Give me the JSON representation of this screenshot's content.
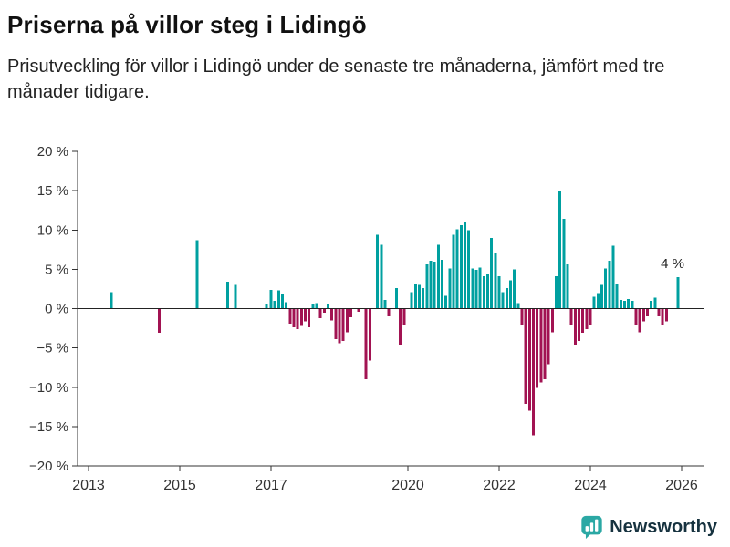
{
  "header": {
    "title": "Priserna på villor steg i Lidingö",
    "subtitle": "Prisutveckling för villor i Lidingö under de senaste tre månaderna, jämfört med tre månader tidigare."
  },
  "chart_data": {
    "type": "bar",
    "title": "Priserna på villor steg i Lidingö",
    "xlabel": "",
    "ylabel": "",
    "unit": "%",
    "ylim": [
      -20,
      20
    ],
    "yticks": [
      20,
      15,
      10,
      5,
      0,
      -5,
      -10,
      -15,
      -20
    ],
    "ytick_suffix": " %",
    "xlim": [
      2012.76,
      2026.5
    ],
    "xticks": [
      2013,
      2015,
      2017,
      2020,
      2022,
      2024,
      2026
    ],
    "grid": false,
    "legend": "none",
    "colors": {
      "positive": "#00a0a0",
      "negative": "#a21352",
      "axis": "#333333",
      "zero_line": "#222222",
      "tick_label": "#333333"
    },
    "annotation": {
      "text": "4 %",
      "x": 2025.92,
      "y": 4
    },
    "points": [
      [
        2013.5,
        2.1
      ],
      [
        2014.55,
        -3.1
      ],
      [
        2015.38,
        8.7
      ],
      [
        2016.05,
        3.4
      ],
      [
        2016.22,
        3.0
      ],
      [
        2016.9,
        0.5
      ],
      [
        2017.0,
        2.4
      ],
      [
        2017.08,
        1.0
      ],
      [
        2017.17,
        2.3
      ],
      [
        2017.25,
        1.9
      ],
      [
        2017.33,
        0.8
      ],
      [
        2017.42,
        -1.9
      ],
      [
        2017.5,
        -2.4
      ],
      [
        2017.58,
        -2.6
      ],
      [
        2017.67,
        -2.2
      ],
      [
        2017.75,
        -1.6
      ],
      [
        2017.83,
        -2.4
      ],
      [
        2017.92,
        0.6
      ],
      [
        2018.0,
        0.7
      ],
      [
        2018.08,
        -1.2
      ],
      [
        2018.17,
        -0.5
      ],
      [
        2018.25,
        0.6
      ],
      [
        2018.33,
        -1.5
      ],
      [
        2018.42,
        -3.9
      ],
      [
        2018.5,
        -4.4
      ],
      [
        2018.58,
        -4.1
      ],
      [
        2018.67,
        -3.0
      ],
      [
        2018.75,
        -1.1
      ],
      [
        2018.92,
        -0.4
      ],
      [
        2019.08,
        -9.0
      ],
      [
        2019.17,
        -6.6
      ],
      [
        2019.33,
        9.4
      ],
      [
        2019.42,
        8.1
      ],
      [
        2019.5,
        1.1
      ],
      [
        2019.58,
        -1.0
      ],
      [
        2019.75,
        2.6
      ],
      [
        2019.83,
        -4.6
      ],
      [
        2019.92,
        -2.1
      ],
      [
        2020.08,
        2.1
      ],
      [
        2020.17,
        3.1
      ],
      [
        2020.25,
        3.0
      ],
      [
        2020.33,
        2.6
      ],
      [
        2020.42,
        5.6
      ],
      [
        2020.5,
        6.1
      ],
      [
        2020.58,
        6.0
      ],
      [
        2020.67,
        8.1
      ],
      [
        2020.75,
        6.2
      ],
      [
        2020.83,
        1.6
      ],
      [
        2020.92,
        5.1
      ],
      [
        2021.0,
        9.4
      ],
      [
        2021.08,
        10.1
      ],
      [
        2021.17,
        10.6
      ],
      [
        2021.25,
        11.0
      ],
      [
        2021.33,
        10.0
      ],
      [
        2021.42,
        5.1
      ],
      [
        2021.5,
        4.9
      ],
      [
        2021.58,
        5.2
      ],
      [
        2021.67,
        4.1
      ],
      [
        2021.75,
        4.4
      ],
      [
        2021.83,
        9.0
      ],
      [
        2021.92,
        7.1
      ],
      [
        2022.0,
        4.1
      ],
      [
        2022.08,
        2.1
      ],
      [
        2022.17,
        2.6
      ],
      [
        2022.25,
        3.6
      ],
      [
        2022.33,
        5.0
      ],
      [
        2022.42,
        0.7
      ],
      [
        2022.5,
        -2.1
      ],
      [
        2022.58,
        -12.1
      ],
      [
        2022.67,
        -13.0
      ],
      [
        2022.75,
        -16.1
      ],
      [
        2022.83,
        -10.1
      ],
      [
        2022.92,
        -9.4
      ],
      [
        2023.0,
        -9.0
      ],
      [
        2023.08,
        -7.1
      ],
      [
        2023.17,
        -3.0
      ],
      [
        2023.25,
        4.1
      ],
      [
        2023.33,
        15.0
      ],
      [
        2023.42,
        11.4
      ],
      [
        2023.5,
        5.6
      ],
      [
        2023.58,
        -2.1
      ],
      [
        2023.67,
        -4.6
      ],
      [
        2023.75,
        -4.1
      ],
      [
        2023.83,
        -3.1
      ],
      [
        2023.92,
        -2.6
      ],
      [
        2024.0,
        -2.0
      ],
      [
        2024.08,
        1.5
      ],
      [
        2024.17,
        2.0
      ],
      [
        2024.25,
        3.0
      ],
      [
        2024.33,
        5.1
      ],
      [
        2024.42,
        6.1
      ],
      [
        2024.5,
        8.0
      ],
      [
        2024.58,
        3.1
      ],
      [
        2024.67,
        1.1
      ],
      [
        2024.75,
        1.0
      ],
      [
        2024.83,
        1.2
      ],
      [
        2024.92,
        1.0
      ],
      [
        2025.0,
        -2.1
      ],
      [
        2025.08,
        -3.0
      ],
      [
        2025.17,
        -1.6
      ],
      [
        2025.25,
        -1.0
      ],
      [
        2025.33,
        1.0
      ],
      [
        2025.42,
        1.4
      ],
      [
        2025.5,
        -1.0
      ],
      [
        2025.58,
        -2.0
      ],
      [
        2025.67,
        -1.6
      ],
      [
        2025.92,
        4.0
      ]
    ]
  },
  "footer": {
    "brand": "Newsworthy",
    "icon_color": "#2ba8a4",
    "text_color": "#16323f"
  }
}
